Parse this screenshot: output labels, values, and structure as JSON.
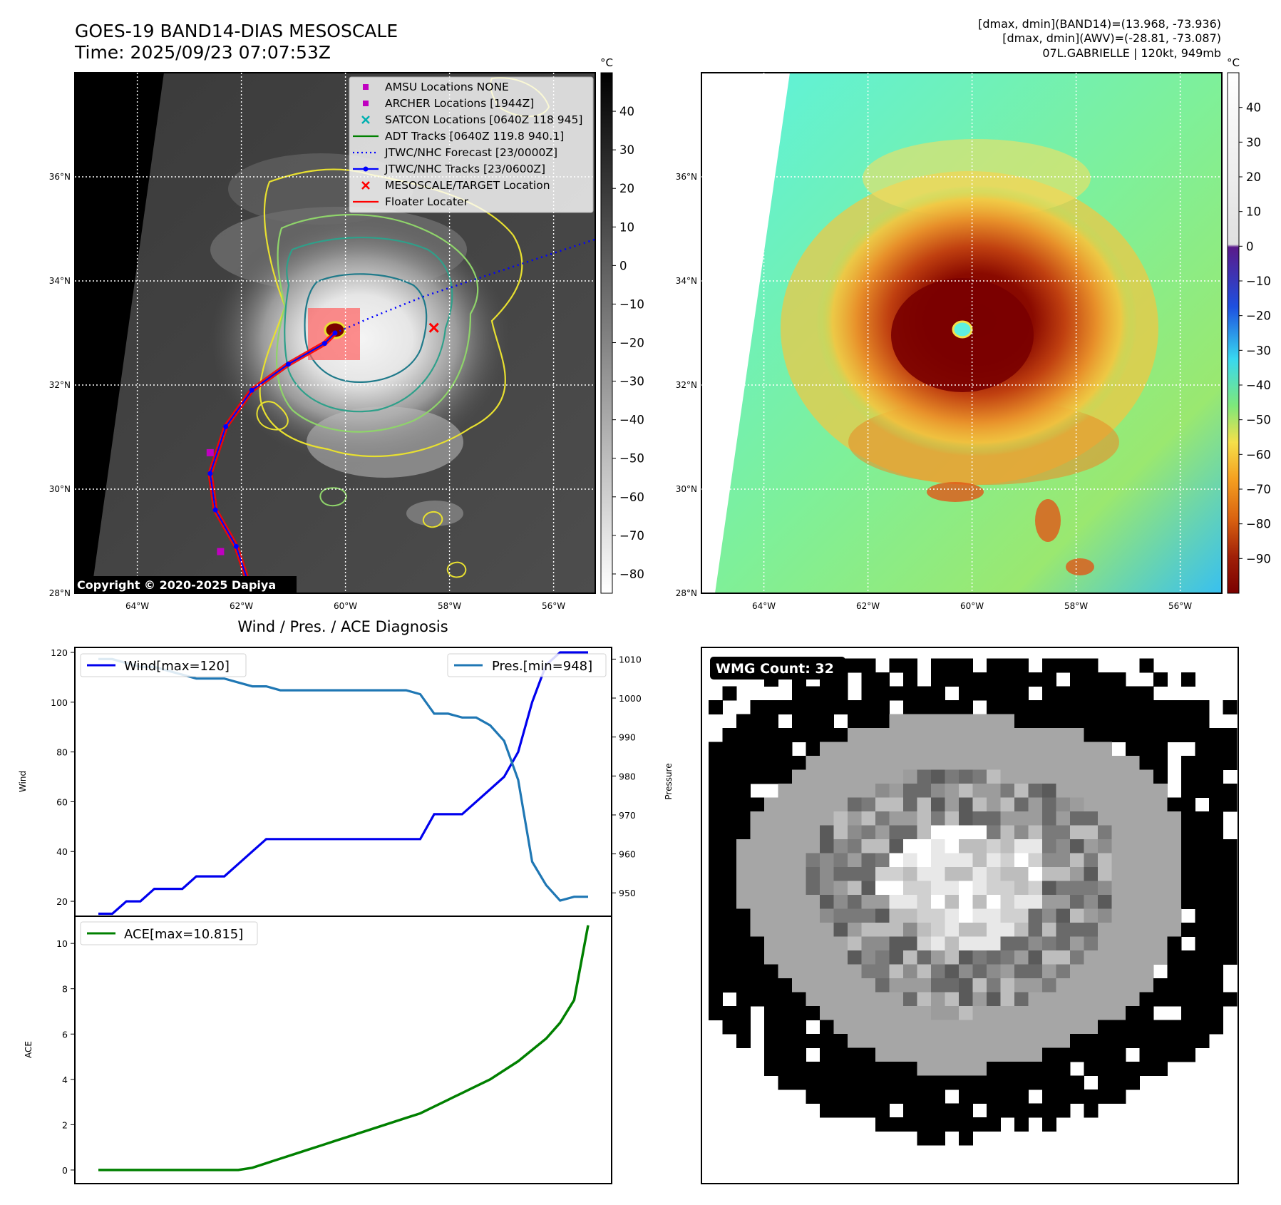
{
  "header": {
    "title": "GOES-19 BAND14-DIAS MESOSCALE",
    "time": "Time: 2025/09/23 07:07:53Z",
    "stats_band14": "[dmax, dmin](BAND14)=(13.968, -73.936)",
    "stats_awv": "[dmax, dmin](AWV)=(-28.81, -73.087)",
    "storm": "07L.GABRIELLE | 120kt, 949mb"
  },
  "map_axes": {
    "lon_ticks": [
      "64°W",
      "62°W",
      "60°W",
      "58°W",
      "56°W"
    ],
    "lon_values": [
      -64,
      -62,
      -60,
      -58,
      -56
    ],
    "lat_ticks": [
      "36°N",
      "34°N",
      "32°N",
      "30°N",
      "28°N"
    ],
    "lat_values": [
      36,
      34,
      32,
      30,
      28
    ],
    "lon_range": [
      -65.2,
      -55.2
    ],
    "lat_range": [
      28,
      38
    ],
    "grid": true
  },
  "left_map": {
    "copyright": "Copyright © 2020-2025 Dapiya",
    "legend": [
      {
        "label": "AMSU Locations NONE",
        "symbol": "square",
        "color": "#c000c0"
      },
      {
        "label": "ARCHER Locations [1944Z]",
        "symbol": "square",
        "color": "#c000c0"
      },
      {
        "label": "SATCON Locations [0640Z 118 945]",
        "symbol": "x",
        "color": "#00b0b0"
      },
      {
        "label": "ADT Tracks [0640Z 119.8 940.1]",
        "symbol": "line",
        "color": "#008000"
      },
      {
        "label": "JTWC/NHC Forecast [23/0000Z]",
        "symbol": "dotted",
        "color": "#0000ff"
      },
      {
        "label": "JTWC/NHC Tracks [23/0600Z]",
        "symbol": "line-dot",
        "color": "#0000ff"
      },
      {
        "label": "MESOSCALE/TARGET Location",
        "symbol": "x",
        "color": "#ff0000"
      },
      {
        "label": "Floater Locater",
        "symbol": "line",
        "color": "#ff0000"
      }
    ],
    "colorbar": {
      "unit": "°C",
      "ticks": [
        "40",
        "30",
        "20",
        "10",
        "0",
        "−10",
        "−20",
        "−30",
        "−40",
        "−50",
        "−60",
        "−70",
        "−80"
      ],
      "values": [
        40,
        30,
        20,
        10,
        0,
        -10,
        -20,
        -30,
        -40,
        -50,
        -60,
        -70,
        -80
      ],
      "range": [
        -85,
        50
      ]
    },
    "storm_center": {
      "lon": -60.2,
      "lat": 33.0
    },
    "target_location": {
      "lon": -58.3,
      "lat": 33.1
    },
    "archer_points": [
      {
        "lon": -62.6,
        "lat": 30.7
      },
      {
        "lon": -62.4,
        "lat": 28.8
      }
    ],
    "forecast_track": [
      {
        "lon": -60.2,
        "lat": 33.0
      },
      {
        "lon": -59.5,
        "lat": 33.3
      },
      {
        "lon": -58.5,
        "lat": 33.7
      },
      {
        "lon": -57.0,
        "lat": 34.2
      },
      {
        "lon": -55.2,
        "lat": 34.8
      }
    ],
    "best_track": [
      {
        "lon": -61.8,
        "lat": 28.0
      },
      {
        "lon": -62.1,
        "lat": 28.9
      },
      {
        "lon": -62.5,
        "lat": 29.6
      },
      {
        "lon": -62.6,
        "lat": 30.3
      },
      {
        "lon": -62.3,
        "lat": 31.2
      },
      {
        "lon": -61.8,
        "lat": 31.9
      },
      {
        "lon": -61.1,
        "lat": 32.4
      },
      {
        "lon": -60.4,
        "lat": 32.8
      },
      {
        "lon": -60.2,
        "lat": 33.0
      }
    ]
  },
  "right_map": {
    "colorbar": {
      "unit": "°C",
      "ticks": [
        "40",
        "30",
        "20",
        "10",
        "0",
        "−10",
        "−20",
        "−30",
        "−40",
        "−50",
        "−60",
        "−70",
        "−80",
        "−90"
      ],
      "values": [
        40,
        30,
        20,
        10,
        0,
        -10,
        -20,
        -30,
        -40,
        -50,
        -60,
        -70,
        -80,
        -90
      ],
      "range": [
        -100,
        50
      ]
    }
  },
  "chart_data": [
    {
      "type": "line",
      "title": "Wind / Pres. / ACE Diagnosis",
      "xlabel": "",
      "ylabel": "Wind",
      "y2label": "Pressure",
      "ylim": [
        14,
        122
      ],
      "y2lim": [
        944,
        1013
      ],
      "yticks": [
        20,
        40,
        60,
        80,
        100,
        120
      ],
      "y2ticks": [
        950,
        960,
        970,
        980,
        990,
        1000,
        1010
      ],
      "x": [
        0,
        1,
        2,
        3,
        4,
        5,
        6,
        7,
        8,
        9,
        10,
        11,
        12,
        13,
        14,
        15,
        16,
        17,
        18,
        19,
        20,
        21,
        22,
        23,
        24,
        25,
        26,
        27,
        28,
        29,
        30,
        31,
        32,
        33,
        34,
        35
      ],
      "series": [
        {
          "name": "Wind[max=120]",
          "axis": "left",
          "color": "#0000ee",
          "values": [
            15,
            15,
            20,
            20,
            25,
            25,
            25,
            30,
            30,
            30,
            35,
            40,
            45,
            45,
            45,
            45,
            45,
            45,
            45,
            45,
            45,
            45,
            45,
            45,
            55,
            55,
            55,
            60,
            65,
            70,
            80,
            100,
            115,
            120,
            120,
            120
          ]
        },
        {
          "name": "Pres.[min=948]",
          "axis": "right",
          "color": "#1f77b4",
          "values": [
            1010,
            1010,
            1009,
            1008,
            1008,
            1007,
            1006,
            1005,
            1005,
            1005,
            1004,
            1003,
            1003,
            1002,
            1002,
            1002,
            1002,
            1002,
            1002,
            1002,
            1002,
            1002,
            1002,
            1001,
            996,
            996,
            995,
            995,
            993,
            989,
            979,
            958,
            952,
            948,
            949,
            949
          ]
        }
      ]
    },
    {
      "type": "line",
      "title": "",
      "xlabel": "",
      "ylabel": "ACE",
      "ylim": [
        -0.6,
        11.2
      ],
      "yticks": [
        0,
        2,
        4,
        6,
        8,
        10
      ],
      "x": [
        0,
        1,
        2,
        3,
        4,
        5,
        6,
        7,
        8,
        9,
        10,
        11,
        12,
        13,
        14,
        15,
        16,
        17,
        18,
        19,
        20,
        21,
        22,
        23,
        24,
        25,
        26,
        27,
        28,
        29,
        30,
        31,
        32,
        33,
        34,
        35
      ],
      "series": [
        {
          "name": "ACE[max=10.815]",
          "color": "#008000",
          "values": [
            0,
            0,
            0,
            0,
            0,
            0,
            0,
            0,
            0,
            0,
            0,
            0.1,
            0.3,
            0.5,
            0.7,
            0.9,
            1.1,
            1.3,
            1.5,
            1.7,
            1.9,
            2.1,
            2.3,
            2.5,
            2.8,
            3.1,
            3.4,
            3.7,
            4.0,
            4.4,
            4.8,
            5.3,
            5.8,
            6.5,
            7.5,
            10.8
          ]
        }
      ]
    }
  ],
  "wmg_panel": {
    "label": "WMG Count: 32"
  }
}
